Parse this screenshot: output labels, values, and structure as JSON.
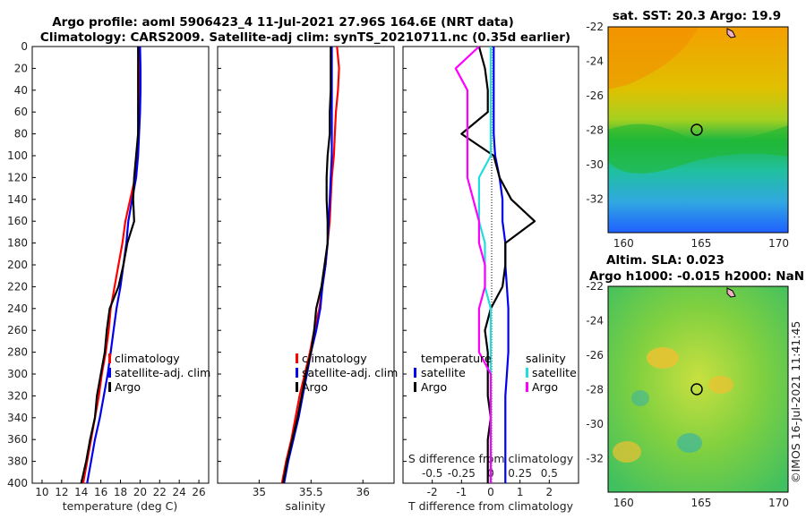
{
  "title": {
    "line1": "Argo profile: aoml 5906423_4 11-Jul-2021 27.96S 164.6E (NRT data)",
    "line2": "Climatology: CARS2009. Satellite-adj clim: synTS_20210711.nc (0.35d earlier)"
  },
  "colors": {
    "climatology": "#ff0000",
    "satellite": "#0000ee",
    "argo": "#000000",
    "sat_salinity": "#22dddd",
    "argo_salinity": "#ff00ff"
  },
  "chart_data": [
    {
      "type": "line",
      "name": "temperature-profile",
      "xlabel": "temperature (deg C)",
      "ylabel": "",
      "xlim": [
        9,
        27
      ],
      "ylim": [
        400,
        0
      ],
      "xticks": [
        "10",
        "12",
        "14",
        "16",
        "18",
        "20",
        "22",
        "24",
        "26"
      ],
      "yticks": [
        "0",
        "20",
        "40",
        "60",
        "80",
        "100",
        "120",
        "140",
        "160",
        "180",
        "200",
        "220",
        "240",
        "260",
        "280",
        "300",
        "320",
        "340",
        "360",
        "380",
        "400"
      ],
      "depth": [
        0,
        20,
        40,
        60,
        80,
        100,
        120,
        140,
        160,
        180,
        200,
        220,
        240,
        260,
        280,
        300,
        320,
        340,
        360,
        380,
        400
      ],
      "series": [
        {
          "name": "climatology",
          "values": [
            19.9,
            19.95,
            19.95,
            19.9,
            19.8,
            19.7,
            19.5,
            19.0,
            18.5,
            18.2,
            17.8,
            17.4,
            17.0,
            16.8,
            16.5,
            16.1,
            15.8,
            15.4,
            15.0,
            14.6,
            14.2
          ]
        },
        {
          "name": "satellite-adj. clim",
          "values": [
            20.0,
            20.05,
            20.05,
            20.0,
            19.9,
            19.8,
            19.6,
            19.2,
            18.8,
            18.6,
            18.3,
            18.0,
            17.6,
            17.3,
            17.0,
            16.7,
            16.3,
            15.9,
            15.4,
            15.0,
            14.6
          ]
        },
        {
          "name": "Argo",
          "values": [
            19.8,
            19.8,
            19.8,
            19.8,
            19.8,
            19.6,
            19.4,
            19.3,
            19.4,
            18.7,
            18.3,
            17.8,
            16.9,
            16.6,
            16.4,
            16.0,
            15.6,
            15.4,
            14.9,
            14.5,
            14.0
          ]
        }
      ],
      "legend": [
        "climatology",
        "satellite-adj. clim",
        "Argo"
      ]
    },
    {
      "type": "line",
      "name": "salinity-profile",
      "xlabel": "salinity",
      "xlim": [
        34.6,
        36.3
      ],
      "ylim": [
        400,
        0
      ],
      "xticks": [
        "35",
        "35.5",
        "36"
      ],
      "depth": [
        0,
        20,
        40,
        60,
        80,
        100,
        120,
        140,
        160,
        180,
        200,
        220,
        240,
        260,
        280,
        300,
        320,
        340,
        360,
        380,
        400
      ],
      "series": [
        {
          "name": "climatology",
          "values": [
            35.75,
            35.77,
            35.76,
            35.74,
            35.73,
            35.72,
            35.7,
            35.69,
            35.68,
            35.66,
            35.64,
            35.61,
            35.58,
            35.53,
            35.49,
            35.44,
            35.39,
            35.35,
            35.31,
            35.26,
            35.22
          ]
        },
        {
          "name": "satellite-adj. clim",
          "values": [
            35.7,
            35.7,
            35.7,
            35.7,
            35.7,
            35.7,
            35.69,
            35.68,
            35.67,
            35.66,
            35.64,
            35.61,
            35.59,
            35.55,
            35.5,
            35.46,
            35.42,
            35.38,
            35.33,
            35.28,
            35.24
          ]
        },
        {
          "name": "Argo",
          "values": [
            35.69,
            35.69,
            35.69,
            35.68,
            35.68,
            35.66,
            35.65,
            35.65,
            35.66,
            35.66,
            35.63,
            35.6,
            35.55,
            35.53,
            35.5,
            35.45,
            35.41,
            35.37,
            35.32,
            35.27,
            35.23
          ]
        }
      ],
      "legend": [
        "climatology",
        "satellite-adj. clim",
        "Argo"
      ]
    },
    {
      "type": "line",
      "name": "difference-profile",
      "xlabel": "T difference from climatology",
      "xlabel_top": "S difference from climatology",
      "xlim": [
        -3,
        3
      ],
      "ylim": [
        400,
        0
      ],
      "xticks": [
        "-2",
        "-1",
        "0",
        "1",
        "2"
      ],
      "xticks_top": [
        "-0.5",
        "-0.25",
        "0",
        "0.25",
        "0.5"
      ],
      "depth": [
        0,
        20,
        40,
        60,
        80,
        100,
        120,
        140,
        160,
        180,
        200,
        220,
        240,
        260,
        280,
        300,
        320,
        340,
        360,
        380,
        400
      ],
      "series": [
        {
          "name": "T satellite",
          "values": [
            0.1,
            0.1,
            0.1,
            0.1,
            0.1,
            0.15,
            0.3,
            0.4,
            0.4,
            0.5,
            0.5,
            0.55,
            0.6,
            0.6,
            0.6,
            0.55,
            0.5,
            0.5,
            0.5,
            0.5,
            0.5
          ]
        },
        {
          "name": "T Argo",
          "values": [
            -0.4,
            -0.2,
            -0.1,
            -0.1,
            -1.0,
            0.1,
            0.3,
            0.7,
            1.5,
            0.5,
            0.5,
            0.4,
            0.0,
            -0.2,
            -0.1,
            -0.1,
            -0.1,
            0.0,
            -0.1,
            -0.1,
            -0.1
          ]
        },
        {
          "name": "S satellite",
          "values": [
            0.0,
            0.0,
            0.0,
            0.0,
            0.0,
            0.0,
            -0.1,
            -0.1,
            -0.1,
            -0.05,
            -0.05,
            -0.05,
            0.0,
            0.0,
            0.0,
            0.0,
            0.0,
            0.0,
            0.0,
            0.0,
            0.0
          ]
        },
        {
          "name": "S Argo",
          "values": [
            -0.1,
            -0.3,
            -0.2,
            -0.2,
            -0.2,
            -0.2,
            -0.2,
            -0.15,
            -0.1,
            -0.1,
            -0.05,
            -0.05,
            -0.1,
            -0.1,
            -0.1,
            0.0,
            0.0,
            0.0,
            0.0,
            0.0,
            0.0
          ]
        }
      ],
      "legend_headers": [
        "temperature",
        "salinity"
      ],
      "legend": [
        "satellite",
        "Argo",
        "satellite",
        "Argo"
      ]
    },
    {
      "type": "heatmap",
      "name": "sst-map",
      "title": "sat. SST: 20.3 Argo: 19.9",
      "xticks": [
        "160",
        "165",
        "170"
      ],
      "yticks": [
        "-22",
        "-24",
        "-26",
        "-28",
        "-30",
        "-32"
      ]
    },
    {
      "type": "heatmap",
      "name": "sla-map",
      "title1": "Altim. SLA: 0.023",
      "title2": "Argo h1000: -0.015 h2000: NaN",
      "xticks": [
        "160",
        "165",
        "170"
      ],
      "yticks": [
        "-22",
        "-24",
        "-26",
        "-28",
        "-30",
        "-32"
      ]
    }
  ],
  "footer": {
    "credit": "©IMOS 16-Jul-2021 11:41:45"
  }
}
